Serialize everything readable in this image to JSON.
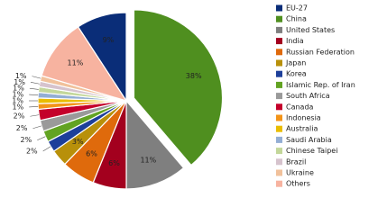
{
  "chart_data": {
    "type": "pie",
    "categories": [
      "EU-27",
      "China",
      "United States",
      "India",
      "Russian Federation",
      "Japan",
      "Korea",
      "Islamic Rep. of Iran",
      "South Africa",
      "Canada",
      "Indonesia",
      "Australia",
      "Saudi Arabia",
      "Chinese Taipei",
      "Brazil",
      "Ukraine",
      "Others"
    ],
    "values": [
      9,
      38,
      11,
      6,
      6,
      3,
      2,
      2,
      2,
      2,
      1,
      1,
      1,
      1,
      1,
      1,
      11
    ],
    "value_labels": [
      "9%",
      "38%",
      "11%",
      "6%",
      "6%",
      "3%",
      "2%",
      "2%",
      "2%",
      "2%",
      "1%",
      "1%",
      "1%",
      "1%",
      "1%",
      "1%",
      "11%"
    ],
    "colors": [
      "#0a2d78",
      "#4f8f1f",
      "#7f7f7f",
      "#a3001e",
      "#df6a0c",
      "#b8900a",
      "#1d3f9a",
      "#62a322",
      "#9a9a9a",
      "#c4002a",
      "#f39419",
      "#e9bd00",
      "#93aed4",
      "#c3d79a",
      "#d6c3cd",
      "#f1c19b",
      "#f7b3a0"
    ],
    "exploded": [
      1
    ]
  }
}
